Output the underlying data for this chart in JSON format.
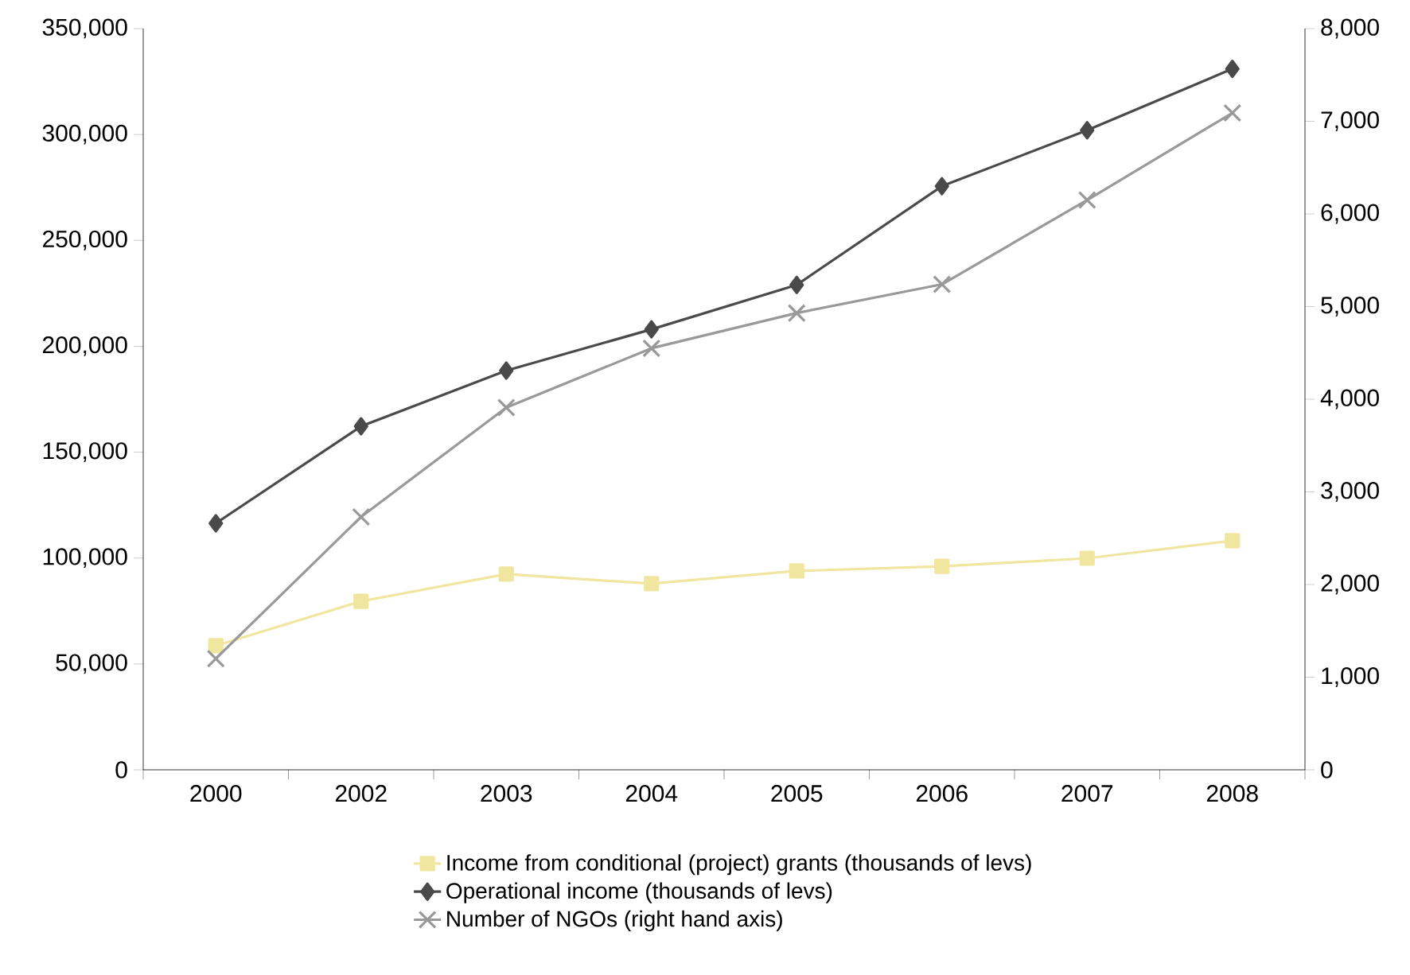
{
  "chart_data": {
    "type": "line",
    "categories": [
      "2000",
      "2002",
      "2003",
      "2004",
      "2005",
      "2006",
      "2007",
      "2008"
    ],
    "series": [
      {
        "name": "Income from conditional (project) grants (thousands of levs)",
        "color": "#f0e6a0",
        "marker": "square",
        "values": [
          58600,
          79600,
          92400,
          87900,
          93900,
          96100,
          99900,
          108200
        ]
      },
      {
        "name": "Operational income (thousands of levs)",
        "color": "#4a4a4a",
        "marker": "diamond",
        "values": [
          116400,
          162200,
          188500,
          208000,
          229000,
          275600,
          302000,
          331000
        ]
      },
      {
        "name": "Number of NGOs (right hand axis)",
        "color": "#999999",
        "marker": "cross",
        "axis": "y2",
        "values": [
          1200,
          2730,
          3910,
          4550,
          4930,
          5240,
          6150,
          7090
        ]
      }
    ],
    "ylim": [
      0,
      350000
    ],
    "yticks": [
      0,
      {
        "value": 50000,
        "label": "50,000"
      },
      {
        "value": 100000,
        "label": "100,000"
      },
      {
        "value": 150000,
        "label": "150,000"
      },
      {
        "value": 200000,
        "label": "200,000"
      },
      {
        "value": 250000,
        "label": "250,000"
      },
      {
        "value": 300000,
        "label": "300,000"
      },
      {
        "value": 350000,
        "label": "350,000"
      }
    ],
    "y2lim": [
      0,
      8000
    ],
    "y2ticks": [
      0,
      {
        "value": 1000,
        "label": "1,000"
      },
      {
        "value": 2000,
        "label": "2,000"
      },
      {
        "value": 3000,
        "label": "3,000"
      },
      {
        "value": 4000,
        "label": "4,000"
      },
      {
        "value": 5000,
        "label": "5,000"
      },
      {
        "value": 6000,
        "label": "6,000"
      },
      {
        "value": 7000,
        "label": "7,000"
      },
      {
        "value": 8000,
        "label": "8,000"
      }
    ],
    "legend": "bottom",
    "grid": false
  }
}
